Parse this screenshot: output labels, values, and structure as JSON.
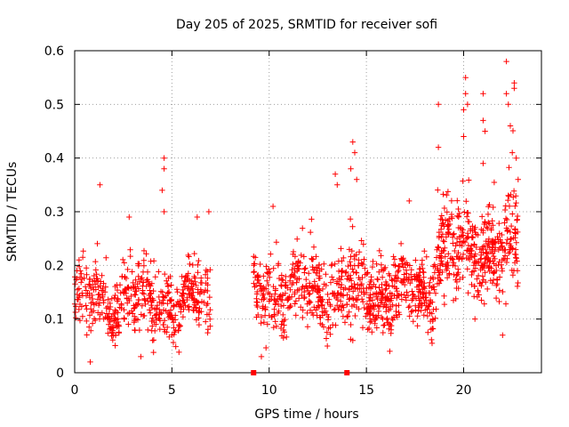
{
  "chart_data": {
    "type": "scatter",
    "title": "Day 205 of 2025, SRMTID for receiver sofi",
    "xlabel": "GPS time / hours",
    "ylabel": "SRMTID / TECUs",
    "xlim": [
      0,
      24
    ],
    "ylim": [
      0,
      0.6
    ],
    "x_ticks": [
      0,
      5,
      10,
      15,
      20
    ],
    "x_tick_labels": [
      "0",
      "5",
      "10",
      "15",
      "20"
    ],
    "y_ticks": [
      0,
      0.1,
      0.2,
      0.3,
      0.4,
      0.5,
      0.6
    ],
    "y_tick_labels": [
      "0",
      "0.1",
      "0.2",
      "0.3",
      "0.4",
      "0.5",
      "0.6"
    ],
    "grid": true,
    "marker": "plus",
    "color": "#ff0000",
    "series": [
      {
        "name": "SRMTID",
        "segments": [
          {
            "x_start": 0.0,
            "x_end": 7.0,
            "baseline": 0.13,
            "spread": 0.05,
            "density": 520
          },
          {
            "x_start": 9.2,
            "x_end": 15.0,
            "baseline": 0.15,
            "spread": 0.055,
            "density": 430
          },
          {
            "x_start": 15.0,
            "x_end": 18.5,
            "baseline": 0.15,
            "spread": 0.05,
            "density": 330
          },
          {
            "x_start": 18.5,
            "x_end": 22.8,
            "baseline": 0.23,
            "spread": 0.07,
            "density": 420
          }
        ],
        "notable_points": [
          {
            "x": 1.3,
            "y": 0.35
          },
          {
            "x": 2.8,
            "y": 0.29
          },
          {
            "x": 4.6,
            "y": 0.4
          },
          {
            "x": 4.6,
            "y": 0.38
          },
          {
            "x": 4.5,
            "y": 0.34
          },
          {
            "x": 4.6,
            "y": 0.3
          },
          {
            "x": 6.3,
            "y": 0.29
          },
          {
            "x": 6.9,
            "y": 0.3
          },
          {
            "x": 10.2,
            "y": 0.31
          },
          {
            "x": 13.4,
            "y": 0.37
          },
          {
            "x": 13.5,
            "y": 0.35
          },
          {
            "x": 14.3,
            "y": 0.43
          },
          {
            "x": 14.4,
            "y": 0.41
          },
          {
            "x": 14.5,
            "y": 0.36
          },
          {
            "x": 14.2,
            "y": 0.38
          },
          {
            "x": 17.2,
            "y": 0.32
          },
          {
            "x": 18.7,
            "y": 0.5
          },
          {
            "x": 18.7,
            "y": 0.42
          },
          {
            "x": 20.0,
            "y": 0.44
          },
          {
            "x": 20.1,
            "y": 0.52
          },
          {
            "x": 20.1,
            "y": 0.55
          },
          {
            "x": 20.2,
            "y": 0.5
          },
          {
            "x": 20.0,
            "y": 0.49
          },
          {
            "x": 21.0,
            "y": 0.52
          },
          {
            "x": 21.0,
            "y": 0.47
          },
          {
            "x": 21.1,
            "y": 0.45
          },
          {
            "x": 21.0,
            "y": 0.39
          },
          {
            "x": 22.2,
            "y": 0.58
          },
          {
            "x": 22.2,
            "y": 0.52
          },
          {
            "x": 22.3,
            "y": 0.5
          },
          {
            "x": 22.6,
            "y": 0.54
          },
          {
            "x": 22.6,
            "y": 0.53
          },
          {
            "x": 22.4,
            "y": 0.46
          },
          {
            "x": 22.5,
            "y": 0.41
          },
          {
            "x": 22.7,
            "y": 0.4
          },
          {
            "x": 22.8,
            "y": 0.36
          },
          {
            "x": 0.8,
            "y": 0.02
          },
          {
            "x": 3.4,
            "y": 0.03
          },
          {
            "x": 9.6,
            "y": 0.03
          },
          {
            "x": 14.3,
            "y": 0.06
          },
          {
            "x": 16.2,
            "y": 0.04
          },
          {
            "x": 22.0,
            "y": 0.07
          }
        ]
      }
    ],
    "gap_markers": [
      {
        "x": 9.2,
        "y": 0
      },
      {
        "x": 14.0,
        "y": 0
      }
    ]
  }
}
